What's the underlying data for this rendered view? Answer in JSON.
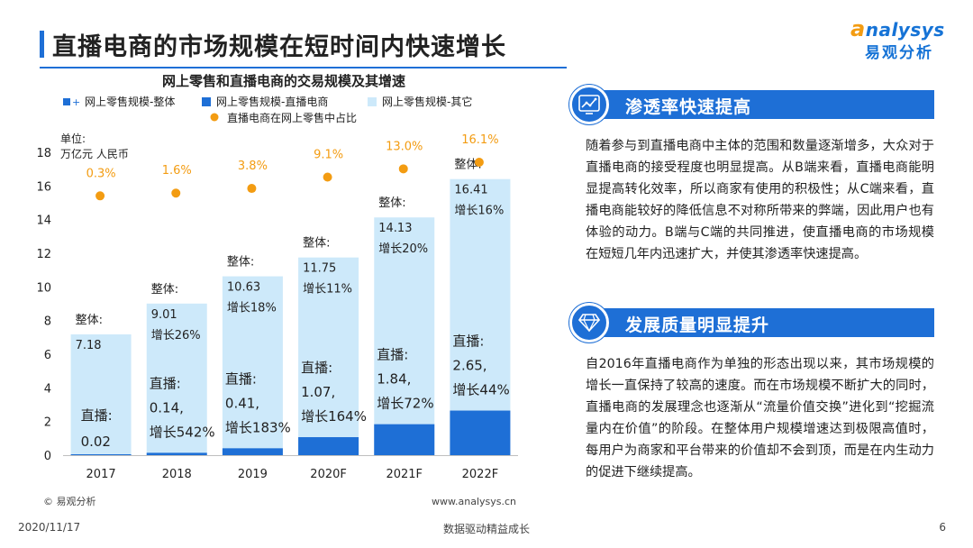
{
  "page": {
    "title": "直播电商的市场规模在短时间内快速增长",
    "logo_word": "nalysys",
    "logo_word_initial": "a",
    "logo_cn": "易观分析",
    "footer_date": "2020/11/17",
    "footer_center": "数据驱动精益成长",
    "page_number": "6"
  },
  "colors": {
    "primary": "#1e6fd6",
    "bar_live": "#1e6fd6",
    "bar_other": "#cde9fa",
    "dot": "#f39c12",
    "legend_whole": "#1e6fd6"
  },
  "chart_data": {
    "type": "bar",
    "title": "网上零售和直播电商的交易规模及其增速",
    "unit_label": "单位:",
    "unit_value": "万亿元 人民币",
    "legend": [
      {
        "label": "网上零售规模-整体",
        "icon": "stacked-square-plus"
      },
      {
        "label": "网上零售规模-直播电商",
        "icon": "dark-square"
      },
      {
        "label": "网上零售规模-其它",
        "icon": "light-square"
      },
      {
        "label": "直播电商在网上零售中占比",
        "icon": "orange-dot"
      }
    ],
    "categories": [
      "2017",
      "2018",
      "2019",
      "2020F",
      "2021F",
      "2022F"
    ],
    "ylim": [
      0,
      18
    ],
    "yticks": [
      0,
      2,
      4,
      6,
      8,
      10,
      12,
      14,
      16,
      18
    ],
    "series": [
      {
        "name": "网上零售规模-整体",
        "values": [
          7.18,
          9.01,
          10.63,
          11.75,
          14.13,
          16.41
        ]
      },
      {
        "name": "网上零售规模-直播电商",
        "values": [
          0.02,
          0.14,
          0.41,
          1.07,
          1.84,
          2.65
        ]
      }
    ],
    "share_series": {
      "name": "直播电商在网上零售中占比",
      "values": [
        0.3,
        1.6,
        3.8,
        9.1,
        13.0,
        16.1
      ],
      "labels": [
        "0.3%",
        "1.6%",
        "3.8%",
        "9.1%",
        "13.0%",
        "16.1%"
      ]
    },
    "whole_labels": [
      {
        "head": "整体:",
        "value": "7.18",
        "growth": ""
      },
      {
        "head": "整体:",
        "value": "9.01",
        "growth": "增长26%"
      },
      {
        "head": "整体:",
        "value": "10.63",
        "growth": "增长18%"
      },
      {
        "head": "整体:",
        "value": "11.75",
        "growth": "增长11%"
      },
      {
        "head": "整体:",
        "value": "14.13",
        "growth": "增长20%"
      },
      {
        "head": "整体:",
        "value": "16.41",
        "growth": "增长16%"
      }
    ],
    "live_labels": [
      {
        "head": "直播:",
        "value": "0.02",
        "growth": ""
      },
      {
        "head": "直播:",
        "value": "0.14,",
        "growth": "增长542%"
      },
      {
        "head": "直播:",
        "value": "0.41,",
        "growth": "增长183%"
      },
      {
        "head": "直播:",
        "value": "1.07,",
        "growth": "增长164%"
      },
      {
        "head": "直播:",
        "value": "1.84,",
        "growth": "增长72%"
      },
      {
        "head": "直播:",
        "value": "2.65,",
        "growth": "增长44%"
      }
    ],
    "source": "© 易观分析",
    "website": "www.analysys.cn",
    "grid": false
  },
  "sections": [
    {
      "title": "渗透率快速提高",
      "icon": "chart-icon",
      "text": "随着参与到直播电商中主体的范围和数量逐渐增多，大众对于直播电商的接受程度也明显提高。从B端来看，直播电商能明显提高转化效率，所以商家有使用的积极性；从C端来看，直播电商能较好的降低信息不对称所带来的弊端，因此用户也有体验的动力。B端与C端的共同推进，使直播电商的市场规模在短短几年内迅速扩大，并使其渗透率快速提高。"
    },
    {
      "title": "发展质量明显提升",
      "icon": "diamond-icon",
      "text": "自2016年直播电商作为单独的形态出现以来，其市场规模的增长一直保持了较高的速度。而在市场规模不断扩大的同时，直播电商的发展理念也逐渐从“流量价值交换”进化到“挖掘流量内在价值”的阶段。在整体用户规模增速达到极限高值时，每用户为商家和平台带来的价值却不会到顶，而是在内生动力的促进下继续提高。"
    }
  ]
}
